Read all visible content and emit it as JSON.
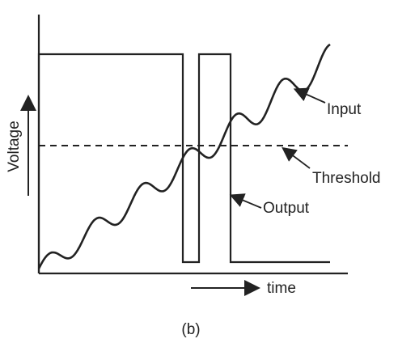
{
  "figure": {
    "caption": "(b)",
    "colors": {
      "ink": "#222222",
      "background": "#ffffff"
    }
  },
  "axes": {
    "y_label": "Voltage",
    "x_label": "time"
  },
  "annotations": {
    "input": "Input",
    "threshold": "Threshold",
    "output": "Output"
  },
  "signals": {
    "input_style": "solid wavy rising line",
    "threshold_style": "dashed horizontal line",
    "output_style": "solid square pulse line"
  }
}
